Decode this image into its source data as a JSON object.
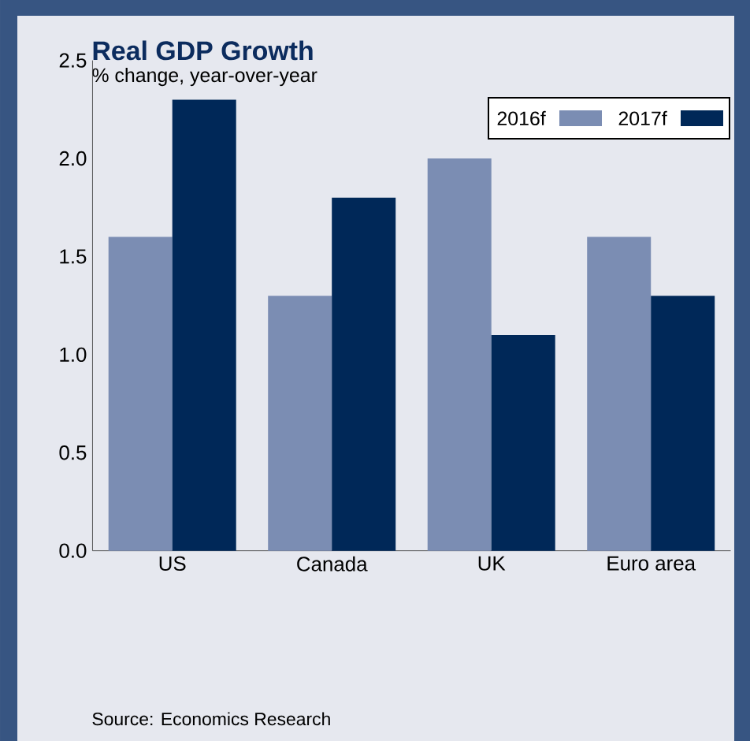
{
  "chart_data": {
    "type": "bar",
    "title": "Real GDP Growth",
    "subtitle": "% change, year-over-year",
    "categories": [
      "US",
      "Canada",
      "UK",
      "Euro area"
    ],
    "series": [
      {
        "name": "2016f",
        "color": "#7b8db3",
        "values": [
          1.6,
          1.3,
          2.0,
          1.6
        ]
      },
      {
        "name": "2017f",
        "color": "#002858",
        "values": [
          2.3,
          1.8,
          1.1,
          1.3
        ]
      }
    ],
    "ylim": [
      0,
      2.5
    ],
    "yticks": [
      {
        "value": 0,
        "label": "0.0"
      },
      {
        "value": 0.5,
        "label": "0.5"
      },
      {
        "value": 1,
        "label": "1.0"
      },
      {
        "value": 1.5,
        "label": "1.5"
      },
      {
        "value": 2,
        "label": "2.0"
      },
      {
        "value": 2.5,
        "label": "2.5"
      }
    ],
    "legend": "top right",
    "annotations": [
      "Source: Economics Research"
    ]
  }
}
